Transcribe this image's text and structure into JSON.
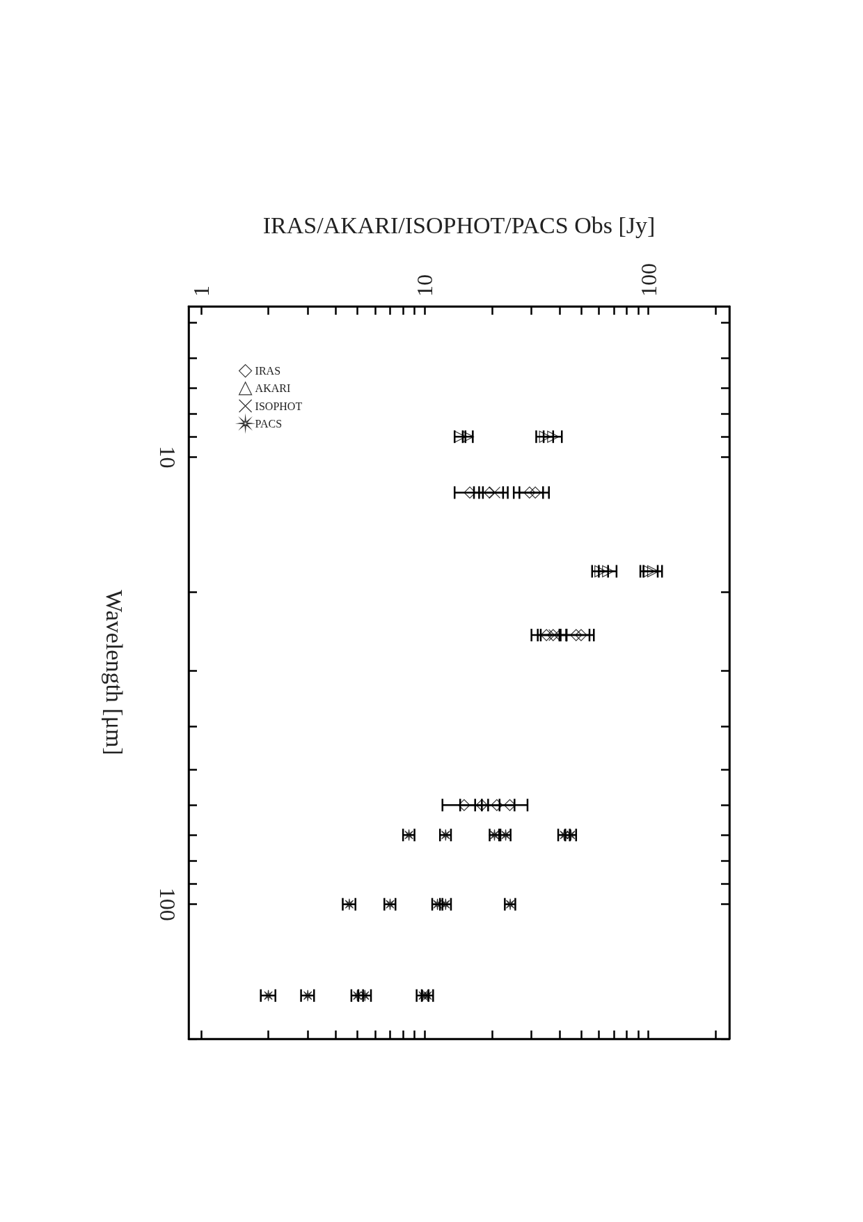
{
  "chart_data": {
    "type": "scatter",
    "xlabel": "IRAS/AKARI/ISOPHOT/PACS Obs [Jy]",
    "ylabel": "Wavelength [μm]",
    "log": "xy",
    "grid": false,
    "legend": "top left",
    "xlim": [
      0.88,
      230
    ],
    "ylim": [
      200,
      4.6
    ],
    "xticks": [
      1,
      {
        "value": 2,
        "label": null
      },
      {
        "value": 3,
        "label": null
      },
      {
        "value": 4,
        "label": null
      },
      {
        "value": 5,
        "label": null
      },
      {
        "value": 6,
        "label": null
      },
      {
        "value": 7,
        "label": null
      },
      {
        "value": 8,
        "label": null
      },
      {
        "value": 9,
        "label": null
      },
      10,
      {
        "value": 20,
        "label": null
      },
      {
        "value": 30,
        "label": null
      },
      {
        "value": 40,
        "label": null
      },
      {
        "value": 50,
        "label": null
      },
      {
        "value": 60,
        "label": null
      },
      {
        "value": 70,
        "label": null
      },
      {
        "value": 80,
        "label": null
      },
      {
        "value": 90,
        "label": null
      },
      100,
      {
        "value": 200,
        "label": null
      }
    ],
    "yticks": [
      {
        "value": 5,
        "label": null
      },
      {
        "value": 6,
        "label": null
      },
      {
        "value": 7,
        "label": null
      },
      {
        "value": 8,
        "label": null
      },
      {
        "value": 9,
        "label": null
      },
      10,
      {
        "value": 20,
        "label": null
      },
      {
        "value": 30,
        "label": null
      },
      {
        "value": 40,
        "label": null
      },
      {
        "value": 50,
        "label": null
      },
      {
        "value": 60,
        "label": null
      },
      {
        "value": 70,
        "label": null
      },
      {
        "value": 80,
        "label": null
      },
      {
        "value": 90,
        "label": null
      },
      100,
      {
        "value": 200,
        "label": null
      }
    ],
    "series": [
      {
        "name": "IRAS",
        "color": "#000000",
        "marker": "diamond",
        "values": [
          12,
          12,
          12,
          12,
          25,
          25,
          25,
          25,
          60,
          60,
          60,
          60
        ],
        "x": [
          15.9,
          19.5,
          29.4,
          31.2,
          35,
          37.5,
          47.5,
          50,
          15,
          18,
          21,
          24
        ],
        "xerrors": [
          2.3,
          2.9,
          4.4,
          4.7,
          5,
          5.5,
          7,
          7,
          3,
          3.6,
          4.2,
          4.8
        ]
      },
      {
        "name": "AKARI",
        "color": "#000000",
        "marker": "triangle",
        "values": [
          9,
          9,
          9,
          9,
          18,
          18,
          18,
          18
        ],
        "x": [
          14.4,
          15.6,
          34.5,
          37.5,
          61,
          66,
          101,
          105
        ],
        "xerrors": [
          0.8,
          0.8,
          3,
          3.5,
          5,
          6,
          9,
          10
        ]
      },
      {
        "name": "ISOPHOT",
        "color": "#000000",
        "marker": "cross",
        "values": [
          12,
          25
        ],
        "x": [
          20.5,
          38
        ],
        "xerrors": [
          3,
          5
        ]
      },
      {
        "name": "PACS",
        "color": "#000000",
        "marker": "star",
        "values": [
          70,
          70,
          70,
          70,
          70,
          70,
          100,
          100,
          100,
          100,
          100,
          160,
          160,
          160,
          160,
          160,
          160
        ],
        "x": [
          8.5,
          12.4,
          20.5,
          23,
          42,
          45,
          4.6,
          7,
          11.4,
          12.4,
          24.1,
          2,
          3,
          5,
          5.4,
          9.8,
          10.3
        ],
        "xerrors": [
          0.5,
          0.7,
          1,
          1.2,
          2.5,
          2.5,
          0.3,
          0.4,
          0.6,
          0.7,
          1.3,
          0.15,
          0.2,
          0.3,
          0.35,
          0.6,
          0.6
        ]
      }
    ]
  }
}
